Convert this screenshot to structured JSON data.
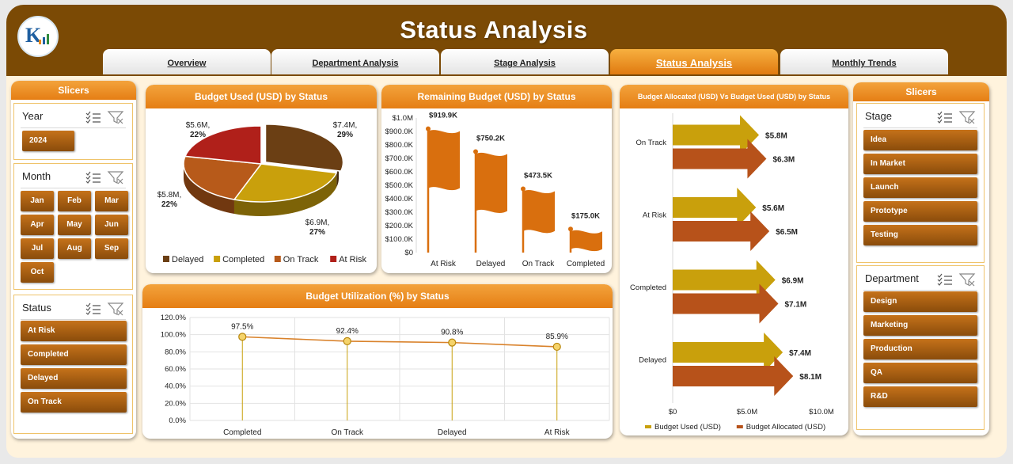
{
  "header": {
    "title": "Status Analysis",
    "logo_text": "K"
  },
  "tabs": [
    {
      "label": "Overview"
    },
    {
      "label": "Department Analysis"
    },
    {
      "label": "Stage Analysis"
    },
    {
      "label": "Status Analysis"
    },
    {
      "label": "Monthly Trends"
    }
  ],
  "left_slicers": {
    "title": "Slicers",
    "year": {
      "label": "Year",
      "items": [
        "2024"
      ]
    },
    "month": {
      "label": "Month",
      "items": [
        "Jan",
        "Feb",
        "Mar",
        "Apr",
        "May",
        "Jun",
        "Jul",
        "Aug",
        "Sep",
        "Oct"
      ]
    },
    "status": {
      "label": "Status",
      "items": [
        "At Risk",
        "Completed",
        "Delayed",
        "On Track"
      ]
    }
  },
  "right_slicers": {
    "title": "Slicers",
    "stage": {
      "label": "Stage",
      "items": [
        "Idea",
        "In Market",
        "Launch",
        "Prototype",
        "Testing"
      ]
    },
    "department": {
      "label": "Department",
      "items": [
        "Design",
        "Marketing",
        "Production",
        "QA",
        "R&D"
      ]
    }
  },
  "colors": {
    "header_brown": "#7b4a05",
    "accent_orange": "#e57e14",
    "delayed": "#6b3f14",
    "completed": "#c9a00c",
    "on_track": "#b75a1a",
    "at_risk": "#b0201a",
    "flag_orange": "#d96f0e",
    "budget_used": "#c9a00c",
    "budget_allocated": "#b7521a"
  },
  "pie_panel": {
    "title": "Budget Used (USD) by Status"
  },
  "flag_panel": {
    "title": "Remaining Budget (USD) by Status"
  },
  "arrow_panel": {
    "title": "Budget Allocated (USD) Vs Budget Used (USD) by Status"
  },
  "line_panel": {
    "title": "Budget Utilization (%) by Status"
  },
  "chart_data": [
    {
      "type": "pie",
      "title": "Budget Used (USD) by Status",
      "slices": [
        {
          "name": "Delayed",
          "value": 7.4,
          "label": "$7.4M,",
          "pct_label": "29%"
        },
        {
          "name": "Completed",
          "value": 6.9,
          "label": "$6.9M,",
          "pct_label": "27%"
        },
        {
          "name": "On Track",
          "value": 5.8,
          "label": "$5.8M,",
          "pct_label": "22%"
        },
        {
          "name": "At Risk",
          "value": 5.6,
          "label": "$5.6M,",
          "pct_label": "22%"
        }
      ],
      "legend": [
        "Delayed",
        "Completed",
        "On Track",
        "At Risk"
      ],
      "legend_position": "bottom"
    },
    {
      "type": "bar",
      "title": "Remaining Budget (USD) by Status",
      "categories": [
        "At Risk",
        "Delayed",
        "On Track",
        "Completed"
      ],
      "values": [
        919.9,
        750.2,
        473.5,
        175.0
      ],
      "value_labels": [
        "$919.9K",
        "$750.2K",
        "$473.5K",
        "$175.0K"
      ],
      "y_ticks": [
        "$0",
        "$100.0K",
        "$200.0K",
        "$300.0K",
        "$400.0K",
        "$500.0K",
        "$600.0K",
        "$700.0K",
        "$800.0K",
        "$900.0K",
        "$1.0M"
      ],
      "ylim": [
        0,
        1000
      ]
    },
    {
      "type": "bar",
      "title": "Budget Allocated (USD) Vs Budget Used (USD) by Status",
      "orientation": "horizontal",
      "categories": [
        "On Track",
        "At Risk",
        "Completed",
        "Delayed"
      ],
      "series": [
        {
          "name": "Budget Used (USD)",
          "values": [
            5.8,
            5.6,
            6.9,
            7.4
          ],
          "labels": [
            "$5.8M",
            "$5.6M",
            "$6.9M",
            "$7.4M"
          ]
        },
        {
          "name": "Budget Allocated (USD)",
          "values": [
            6.3,
            6.5,
            7.1,
            8.1
          ],
          "labels": [
            "$6.3M",
            "$6.5M",
            "$7.1M",
            "$8.1M"
          ]
        }
      ],
      "x_ticks": [
        "$0",
        "$5.0M",
        "$10.0M"
      ],
      "xlim": [
        0,
        10
      ],
      "legend_position": "bottom"
    },
    {
      "type": "line",
      "title": "Budget Utilization (%) by Status",
      "categories": [
        "Completed",
        "On Track",
        "Delayed",
        "At Risk"
      ],
      "values": [
        97.5,
        92.4,
        90.8,
        85.9
      ],
      "value_labels": [
        "97.5%",
        "92.4%",
        "90.8%",
        "85.9%"
      ],
      "y_ticks": [
        "0.0%",
        "20.0%",
        "40.0%",
        "60.0%",
        "80.0%",
        "100.0%",
        "120.0%"
      ],
      "ylim": [
        0,
        120
      ],
      "grid": true
    }
  ]
}
